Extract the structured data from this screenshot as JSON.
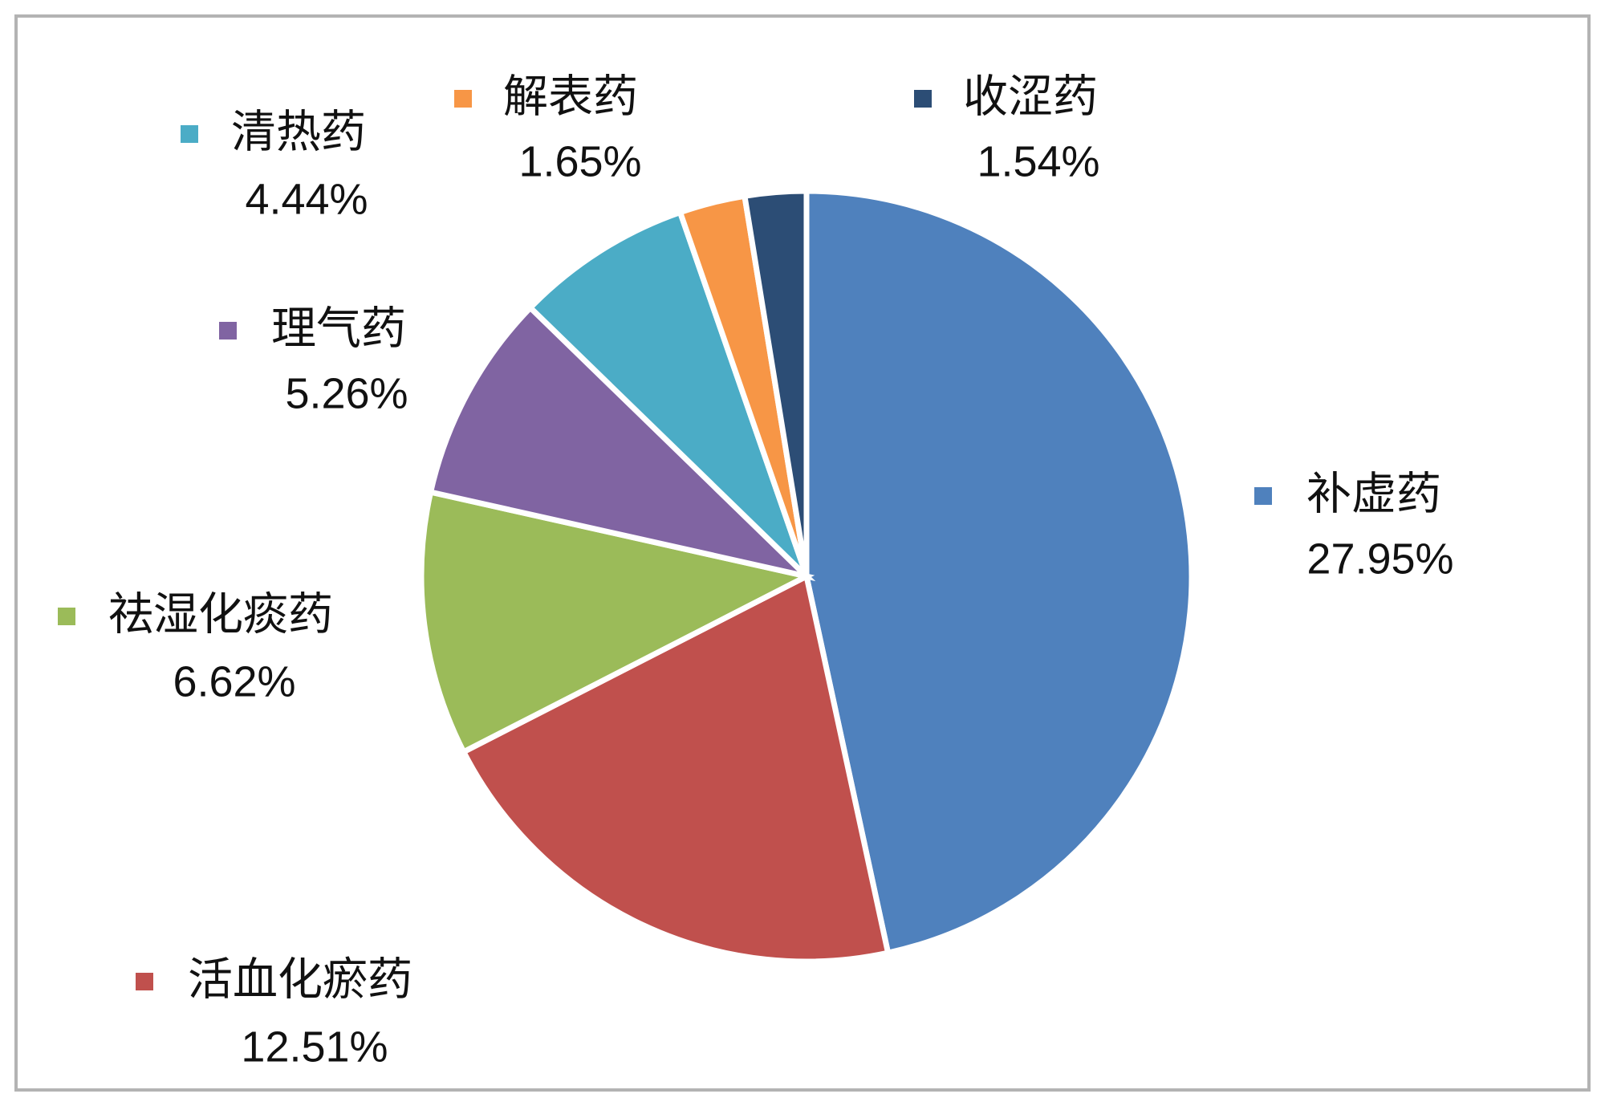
{
  "chart_data": {
    "type": "pie",
    "series": [
      {
        "name": "补虚药",
        "value_label": "27.95%",
        "value": 27.95,
        "color": "#4f81bd"
      },
      {
        "name": "活血化瘀药",
        "value_label": "12.51%",
        "value": 12.51,
        "color": "#c0504d"
      },
      {
        "name": "祛湿化痰药",
        "value_label": "6.62%",
        "value": 6.62,
        "color": "#9bbb59"
      },
      {
        "name": "理气药",
        "value_label": "5.26%",
        "value": 5.26,
        "color": "#8064a2"
      },
      {
        "name": "清热药",
        "value_label": "4.44%",
        "value": 4.44,
        "color": "#4bacc6"
      },
      {
        "name": "解表药",
        "value_label": "1.65%",
        "value": 1.65,
        "color": "#f79646"
      },
      {
        "name": "收涩药",
        "value_label": "1.54%",
        "value": 1.54,
        "color": "#2c4d75"
      }
    ]
  }
}
